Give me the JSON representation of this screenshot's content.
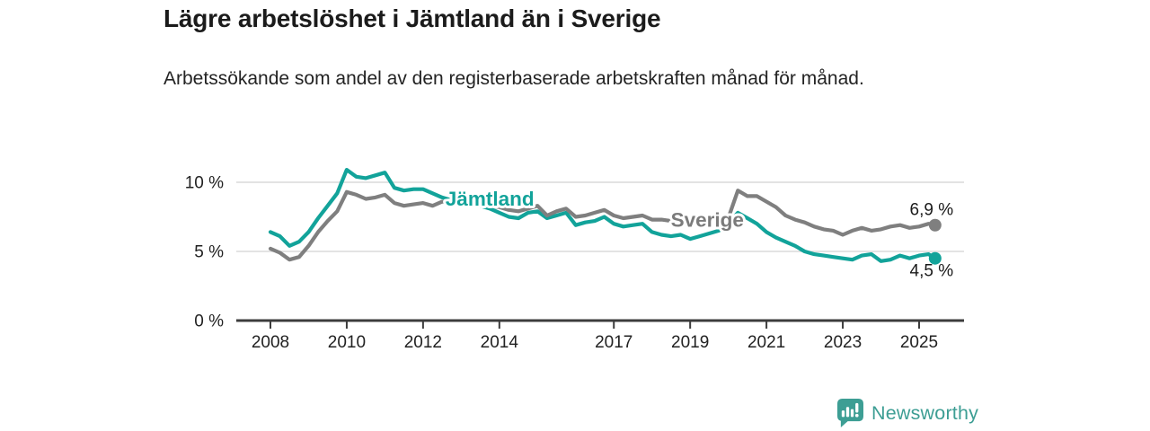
{
  "header": {
    "title": "Lägre arbetslöshet i Jämtland än i Sverige",
    "subtitle": "Arbetssökande som andel av den registerbaserade arbetskraften månad för månad."
  },
  "footer": {
    "brand": "Newsworthy",
    "logo_icon": "speech-bubble-bar-chart-icon",
    "brand_color": "#3d9e94"
  },
  "colors": {
    "jamtland_line": "#12a39a",
    "sverige_line": "#7f7f7f",
    "grid": "#dadada",
    "axis": "#3c3c3c",
    "tick_text": "#222222",
    "value_text": "#1a1a1a",
    "background": "#ffffff"
  },
  "chart_data": {
    "type": "line",
    "unit": "%",
    "title": "Lägre arbetslöshet i Jämtland än i Sverige",
    "xlabel": "",
    "ylabel": "",
    "ylim": [
      0,
      11.5
    ],
    "xlim": [
      2007.9,
      2026.2
    ],
    "grid": "horizontal-only",
    "legend": "inline-labels-on-lines",
    "x": [
      2008,
      2008.25,
      2008.5,
      2008.75,
      2009,
      2009.25,
      2009.5,
      2009.75,
      2010,
      2010.25,
      2010.5,
      2010.75,
      2011,
      2011.25,
      2011.5,
      2011.75,
      2012,
      2012.25,
      2012.5,
      2012.75,
      2013,
      2013.25,
      2013.5,
      2013.75,
      2014,
      2014.25,
      2014.5,
      2014.75,
      2015,
      2015.25,
      2015.5,
      2015.75,
      2016,
      2016.25,
      2016.5,
      2016.75,
      2017,
      2017.25,
      2017.5,
      2017.75,
      2018,
      2018.25,
      2018.5,
      2018.75,
      2019,
      2019.25,
      2019.5,
      2019.75,
      2020,
      2020.25,
      2020.5,
      2020.75,
      2021,
      2021.25,
      2021.5,
      2021.75,
      2022,
      2022.25,
      2022.5,
      2022.75,
      2023,
      2023.25,
      2023.5,
      2023.75,
      2024,
      2024.25,
      2024.5,
      2024.75,
      2025,
      2025.25,
      2025.42
    ],
    "series": [
      {
        "name": "Jämtland",
        "color": "#12a39a",
        "end_label": "4,5 %",
        "end_value": 4.5,
        "values": [
          6.4,
          6.1,
          5.4,
          5.7,
          6.4,
          7.4,
          8.3,
          9.2,
          10.9,
          10.4,
          10.3,
          10.5,
          10.7,
          9.6,
          9.4,
          9.5,
          9.5,
          9.2,
          8.9,
          8.7,
          8.8,
          8.5,
          8.3,
          8.1,
          7.8,
          7.5,
          7.4,
          7.8,
          7.9,
          7.4,
          7.6,
          7.8,
          6.9,
          7.1,
          7.2,
          7.5,
          7.0,
          6.8,
          6.9,
          7.0,
          6.4,
          6.2,
          6.1,
          6.2,
          5.9,
          6.1,
          6.3,
          6.5,
          7.0,
          7.8,
          7.4,
          7.0,
          6.4,
          6.0,
          5.7,
          5.4,
          5.0,
          4.8,
          4.7,
          4.6,
          4.5,
          4.4,
          4.7,
          4.8,
          4.3,
          4.4,
          4.7,
          4.5,
          4.7,
          4.8,
          4.5
        ]
      },
      {
        "name": "Sverige",
        "color": "#7f7f7f",
        "end_label": "6,9 %",
        "end_value": 6.9,
        "values": [
          5.2,
          4.9,
          4.4,
          4.6,
          5.4,
          6.4,
          7.2,
          7.9,
          9.3,
          9.1,
          8.8,
          8.9,
          9.1,
          8.5,
          8.3,
          8.4,
          8.5,
          8.3,
          8.6,
          8.5,
          8.6,
          8.4,
          8.5,
          8.3,
          8.2,
          8.0,
          7.9,
          8.1,
          8.3,
          7.6,
          7.9,
          8.1,
          7.5,
          7.6,
          7.8,
          8.0,
          7.6,
          7.4,
          7.5,
          7.6,
          7.3,
          7.3,
          7.2,
          7.1,
          7.0,
          7.1,
          7.1,
          7.2,
          7.4,
          9.4,
          9.0,
          9.0,
          8.6,
          8.2,
          7.6,
          7.3,
          7.1,
          6.8,
          6.6,
          6.5,
          6.2,
          6.5,
          6.7,
          6.5,
          6.6,
          6.8,
          6.9,
          6.7,
          6.8,
          7.0,
          6.9
        ]
      }
    ],
    "annotations": [
      {
        "text": "Jämtland",
        "x": 2013.75,
        "y": 8.3,
        "color": "#12a39a"
      },
      {
        "text": "Sverige",
        "x": 2019.45,
        "y": 6.8,
        "color": "#7b7b7b"
      }
    ],
    "yticks": [
      {
        "v": 0,
        "label": "0 %"
      },
      {
        "v": 5,
        "label": "5 %"
      },
      {
        "v": 10,
        "label": "10 %"
      }
    ],
    "xticks": [
      {
        "v": 2008,
        "label": "2008"
      },
      {
        "v": 2010,
        "label": "2010"
      },
      {
        "v": 2012,
        "label": "2012"
      },
      {
        "v": 2014,
        "label": "2014"
      },
      {
        "v": 2017,
        "label": "2017"
      },
      {
        "v": 2019,
        "label": "2019"
      },
      {
        "v": 2021,
        "label": "2021"
      },
      {
        "v": 2023,
        "label": "2023"
      },
      {
        "v": 2025,
        "label": "2025"
      }
    ]
  }
}
